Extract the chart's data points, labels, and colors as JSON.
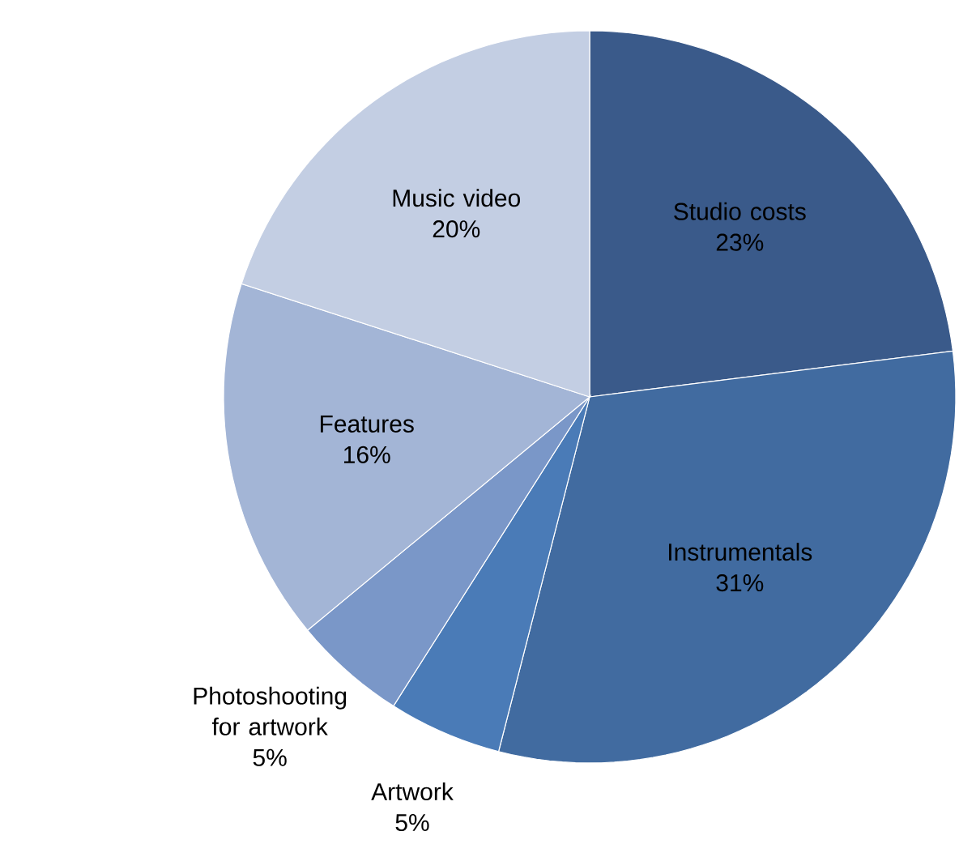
{
  "chart_data": {
    "type": "pie",
    "categories": [
      "Studio costs",
      "Instrumentals",
      "Artwork",
      "Photoshooting for artwork",
      "Features",
      "Music video"
    ],
    "values": [
      23,
      31,
      5,
      5,
      16,
      20
    ],
    "value_labels": [
      "23%",
      "31%",
      "5%",
      "5%",
      "16%",
      "20%"
    ],
    "colors": [
      "#3a5a8a",
      "#416ba0",
      "#4a7bb7",
      "#7a97c8",
      "#a3b5d6",
      "#c3cee3"
    ]
  }
}
